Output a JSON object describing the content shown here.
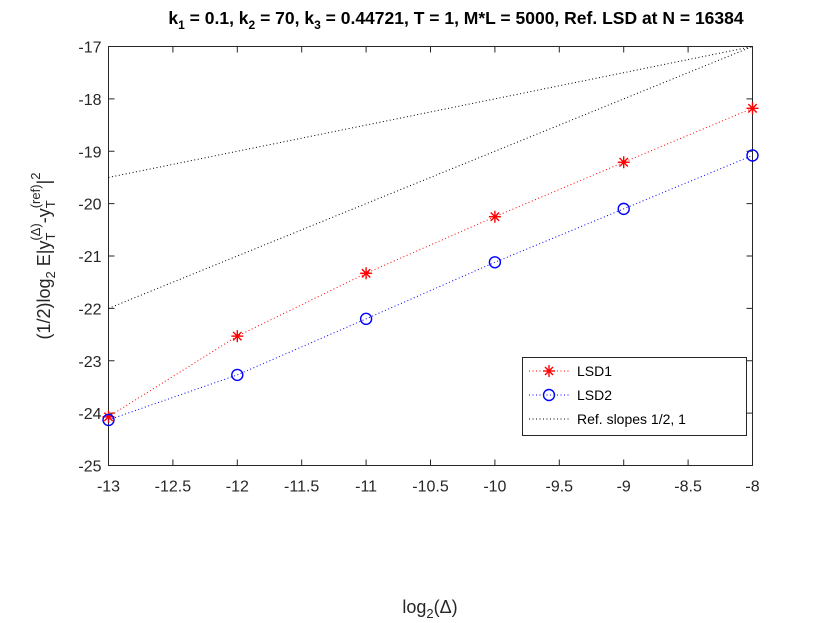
{
  "chart_data": {
    "type": "line",
    "title": {
      "k1_label": "k",
      "k1_sub": "1",
      "k1_value": " = 0.1, ",
      "k2_label": "k",
      "k2_sub": "2",
      "k2_value": " = 70, ",
      "k3_label": "k",
      "k3_sub": "3",
      "k3_value": " = 0.44721, T = 1, M*L  = 5000, Ref. LSD at N = 16384"
    },
    "xlabel": {
      "prefix": "log",
      "sub": "2",
      "suffix": "(Δ)"
    },
    "ylabel": {
      "part1": "(1/2)log",
      "sub1": "2",
      "part2": " E|y",
      "sub_T1": "T",
      "sup_delta": "(Δ)",
      "part3": "-y",
      "sub_T2": "T",
      "sup_ref": "(ref)",
      "part4": "|",
      "sup_2": "2"
    },
    "xlim": [
      -13,
      -8
    ],
    "ylim": [
      -25,
      -17
    ],
    "xticks": [
      -13,
      -12.5,
      -12,
      -11.5,
      -11,
      -10.5,
      -10,
      -9.5,
      -9,
      -8.5,
      -8
    ],
    "xtick_labels": [
      "-13",
      "-12.5",
      "-12",
      "-11.5",
      "-11",
      "-10.5",
      "-10",
      "-9.5",
      "-9",
      "-8.5",
      "-8"
    ],
    "yticks": [
      -25,
      -24,
      -23,
      -22,
      -21,
      -20,
      -19,
      -18,
      -17
    ],
    "ytick_labels": [
      "-25",
      "-24",
      "-23",
      "-22",
      "-21",
      "-20",
      "-19",
      "-18",
      "-17"
    ],
    "legend_position": "center-right",
    "series": [
      {
        "name": "LSD1",
        "marker": "asterisk",
        "color": "#ff0000",
        "line": "dotted",
        "x": [
          -13,
          -12,
          -11,
          -10,
          -9,
          -8
        ],
        "y": [
          -24.07,
          -22.53,
          -21.33,
          -20.25,
          -19.21,
          -18.18
        ]
      },
      {
        "name": "LSD2",
        "marker": "circle",
        "color": "#0000ff",
        "line": "dotted",
        "x": [
          -13,
          -12,
          -11,
          -10,
          -9,
          -8
        ],
        "y": [
          -24.13,
          -23.27,
          -22.2,
          -21.12,
          -20.1,
          -19.08
        ]
      },
      {
        "name": "Ref. slopes 1/2, 1",
        "marker": "none",
        "color": "#000000",
        "line": "dotted",
        "lines": [
          {
            "x": [
              -13,
              -8
            ],
            "y": [
              -19.5,
              -17.0
            ]
          },
          {
            "x": [
              -13,
              -8
            ],
            "y": [
              -22.0,
              -17.0
            ]
          }
        ]
      }
    ]
  }
}
